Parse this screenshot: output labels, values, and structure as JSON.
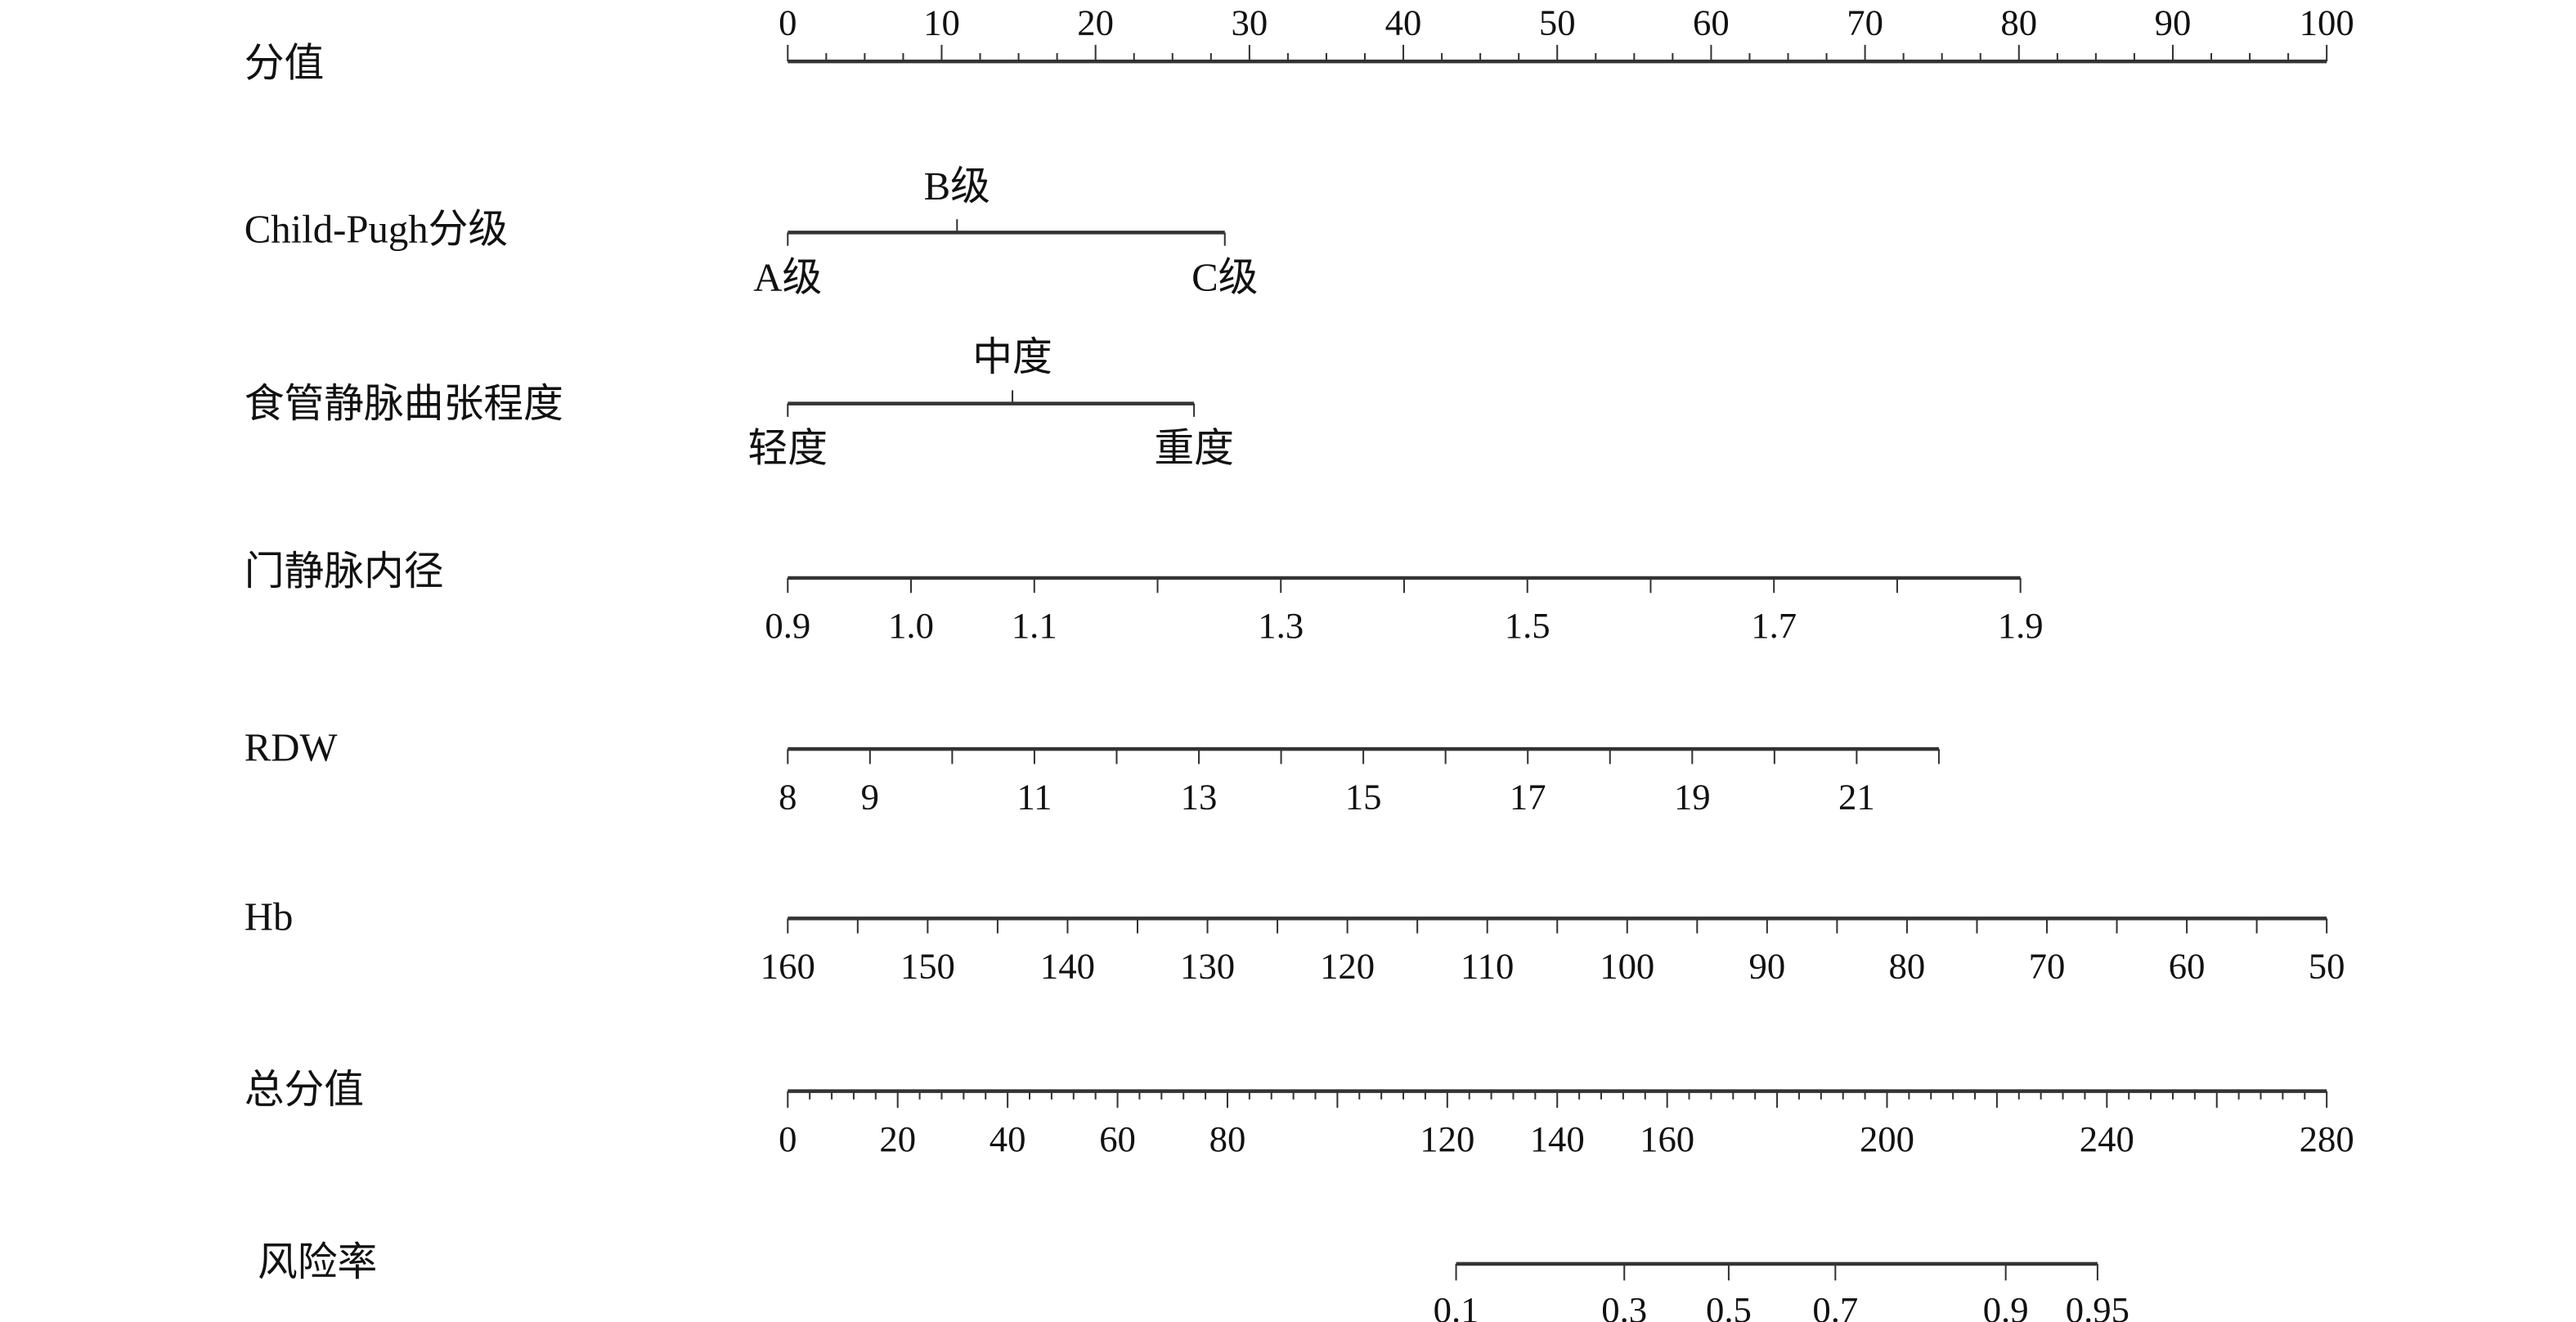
{
  "chart_data": {
    "type": "nomogram",
    "colors": {
      "axis": "#333333",
      "text": "#111111"
    },
    "points_axis": {
      "label": "分值",
      "range": [
        0,
        100
      ],
      "tick_step": 2.5,
      "tick_labels": [
        "0",
        "10",
        "20",
        "30",
        "40",
        "50",
        "60",
        "70",
        "80",
        "90",
        "100"
      ],
      "tick_values": [
        0,
        10,
        20,
        30,
        40,
        50,
        60,
        70,
        80,
        90,
        100
      ]
    },
    "variables": [
      {
        "label": "Child-Pugh分级",
        "type": "categorical",
        "levels": [
          {
            "name": "A级",
            "points": 0,
            "position": "below"
          },
          {
            "name": "B级",
            "points": 11,
            "position": "above"
          },
          {
            "name": "C级",
            "points": 28.4,
            "position": "below"
          }
        ]
      },
      {
        "label": "食管静脉曲张程度",
        "type": "categorical",
        "levels": [
          {
            "name": "轻度",
            "points": 0,
            "position": "below"
          },
          {
            "name": "中度",
            "points": 14.6,
            "position": "above"
          },
          {
            "name": "重度",
            "points": 26.4,
            "position": "below"
          }
        ]
      },
      {
        "label": "门静脉内径",
        "type": "continuous",
        "range": [
          0.9,
          1.9
        ],
        "points_range": [
          0,
          80.1
        ],
        "tick_values": [
          0.9,
          1.0,
          1.1,
          1.2,
          1.3,
          1.4,
          1.5,
          1.6,
          1.7,
          1.8,
          1.9
        ],
        "tick_labels": [
          {
            "v": 0.9,
            "t": "0.9"
          },
          {
            "v": 1.0,
            "t": "1.0"
          },
          {
            "v": 1.1,
            "t": "1.1"
          },
          {
            "v": 1.3,
            "t": "1.3"
          },
          {
            "v": 1.5,
            "t": "1.5"
          },
          {
            "v": 1.7,
            "t": "1.7"
          },
          {
            "v": 1.9,
            "t": "1.9"
          }
        ]
      },
      {
        "label": "RDW",
        "type": "continuous",
        "range": [
          8,
          22
        ],
        "points_range": [
          0,
          74.8
        ],
        "tick_values": [
          8,
          9,
          10,
          11,
          12,
          13,
          14,
          15,
          16,
          17,
          18,
          19,
          20,
          21,
          22
        ],
        "tick_labels": [
          {
            "v": 8,
            "t": "8"
          },
          {
            "v": 9,
            "t": "9"
          },
          {
            "v": 11,
            "t": "11"
          },
          {
            "v": 13,
            "t": "13"
          },
          {
            "v": 15,
            "t": "15"
          },
          {
            "v": 17,
            "t": "17"
          },
          {
            "v": 19,
            "t": "19"
          },
          {
            "v": 21,
            "t": "21"
          }
        ]
      },
      {
        "label": "Hb",
        "type": "continuous",
        "range": [
          160,
          50
        ],
        "points_range": [
          0,
          100
        ],
        "tick_values": [
          160,
          155,
          150,
          145,
          140,
          135,
          130,
          125,
          120,
          115,
          110,
          105,
          100,
          95,
          90,
          85,
          80,
          75,
          70,
          65,
          60,
          55,
          50
        ],
        "tick_labels": [
          {
            "v": 160,
            "t": "160"
          },
          {
            "v": 150,
            "t": "150"
          },
          {
            "v": 140,
            "t": "140"
          },
          {
            "v": 130,
            "t": "130"
          },
          {
            "v": 120,
            "t": "120"
          },
          {
            "v": 110,
            "t": "110"
          },
          {
            "v": 100,
            "t": "100"
          },
          {
            "v": 90,
            "t": "90"
          },
          {
            "v": 80,
            "t": "80"
          },
          {
            "v": 70,
            "t": "70"
          },
          {
            "v": 60,
            "t": "60"
          },
          {
            "v": 50,
            "t": "50"
          }
        ]
      }
    ],
    "total_points_axis": {
      "label": "总分值",
      "range": [
        0,
        280
      ],
      "tick_step": 4,
      "major_step": 20,
      "tick_labels": [
        {
          "v": 0,
          "t": "0"
        },
        {
          "v": 20,
          "t": "20"
        },
        {
          "v": 40,
          "t": "40"
        },
        {
          "v": 60,
          "t": "60"
        },
        {
          "v": 80,
          "t": "80"
        },
        {
          "v": 120,
          "t": "120"
        },
        {
          "v": 140,
          "t": "140"
        },
        {
          "v": 160,
          "t": "160"
        },
        {
          "v": 200,
          "t": "200"
        },
        {
          "v": 240,
          "t": "240"
        },
        {
          "v": 280,
          "t": "280"
        }
      ]
    },
    "risk_axis": {
      "label": "风险率",
      "ticks": [
        {
          "t": "0.1",
          "total_points": 121.6
        },
        {
          "t": "0.3",
          "total_points": 152.2
        },
        {
          "t": "0.5",
          "total_points": 171.2
        },
        {
          "t": "0.7",
          "total_points": 190.6
        },
        {
          "t": "0.9",
          "total_points": 221.6
        },
        {
          "t": "0.95",
          "total_points": 238.3
        }
      ]
    }
  }
}
